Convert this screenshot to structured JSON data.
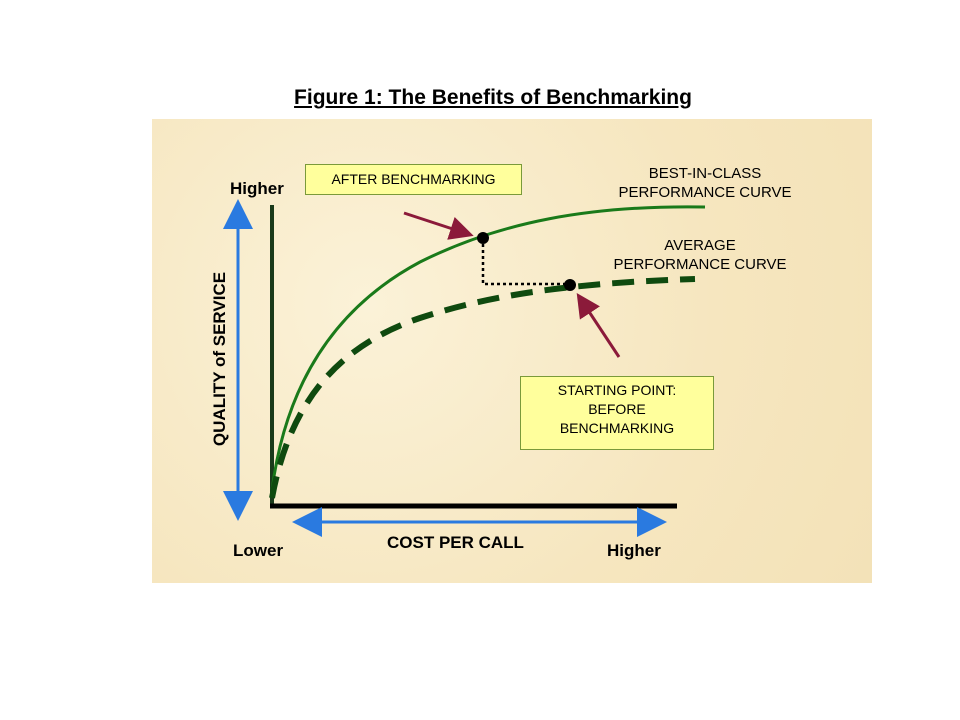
{
  "title": "Figure 1: The Benefits of Benchmarking",
  "axes": {
    "y_label": "QUALITY of SERVICE",
    "y_high": "Higher",
    "x_label": "COST PER CALL",
    "x_low": "Lower",
    "x_high": "Higher"
  },
  "curves": {
    "best_line1": "BEST-IN-CLASS",
    "best_line2": "PERFORMANCE CURVE",
    "avg_line1": "AVERAGE",
    "avg_line2": "PERFORMANCE CURVE"
  },
  "boxes": {
    "after": "AFTER BENCHMARKING",
    "start_line1": "STARTING POINT:",
    "start_line2": "BEFORE",
    "start_line3": "BENCHMARKING"
  },
  "colors": {
    "panel": "#f8ecc8",
    "axis": "#1a3a1a",
    "best_curve": "#1a7a1a",
    "avg_curve": "#0f4a0f",
    "arrow_blue": "#2a7ae0",
    "pointer": "#8b1a3a",
    "box_fill": "#ffff9c"
  }
}
